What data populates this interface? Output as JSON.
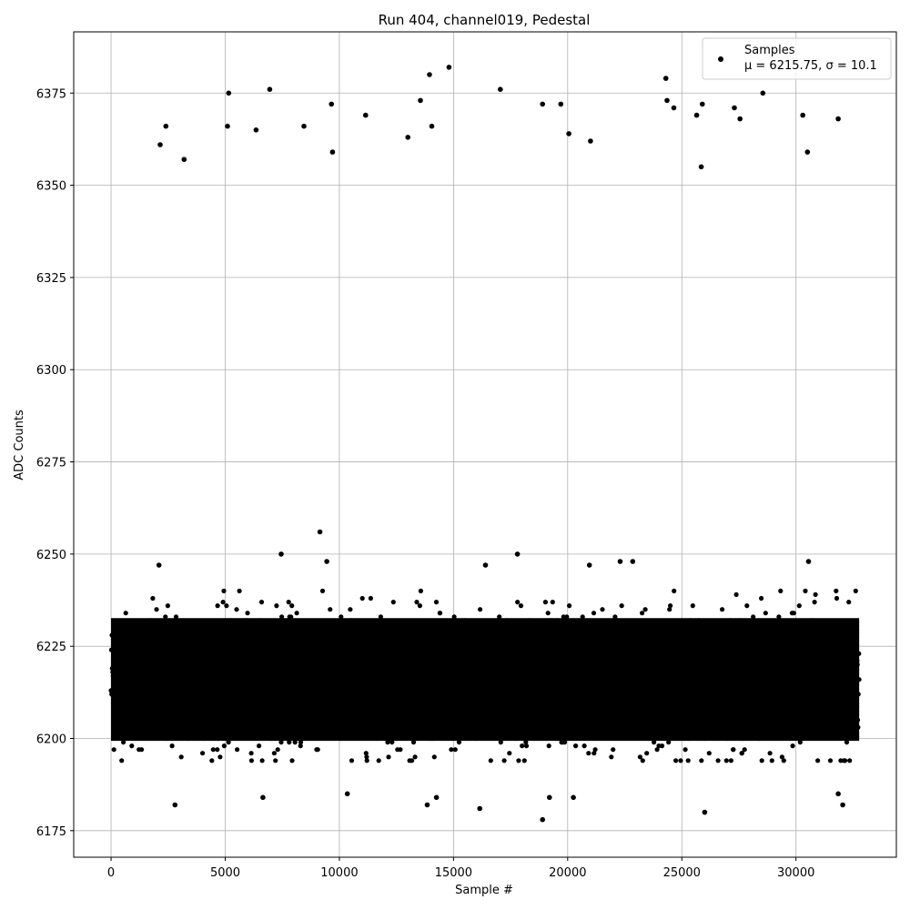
{
  "chart_data": {
    "type": "scatter",
    "title": "Run 404, channel019, Pedestal",
    "xlabel": "Sample #",
    "ylabel": "ADC Counts",
    "xlim": [
      -1636,
      34396
    ],
    "ylim": [
      6167.8,
      6391.6
    ],
    "xticks": [
      0,
      5000,
      10000,
      15000,
      20000,
      25000,
      30000
    ],
    "xtick_labels": [
      "0",
      "5000",
      "10000",
      "15000",
      "20000",
      "25000",
      "30000"
    ],
    "yticks": [
      6175,
      6200,
      6225,
      6250,
      6275,
      6300,
      6325,
      6350,
      6375
    ],
    "ytick_labels": [
      "6175",
      "6200",
      "6225",
      "6250",
      "6275",
      "6300",
      "6325",
      "6350",
      "6375"
    ],
    "grid": true,
    "legend_position": "top-right",
    "series": [
      {
        "name": "Samples",
        "legend_detail": "μ = 6215.75, σ = 10.1",
        "color": "#000000",
        "marker": "circle",
        "band": {
          "x_range": [
            0,
            32767
          ],
          "mean": 6215.75,
          "sigma": 10.1,
          "dense_range": [
            6200,
            6232
          ]
        },
        "outliers": [
          [
            2150,
            6361
          ],
          [
            2400,
            6366
          ],
          [
            3200,
            6357
          ],
          [
            5100,
            6366
          ],
          [
            5150,
            6375
          ],
          [
            6350,
            6365
          ],
          [
            6950,
            6376
          ],
          [
            8450,
            6366
          ],
          [
            9650,
            6372
          ],
          [
            9700,
            6359
          ],
          [
            11150,
            6369
          ],
          [
            13000,
            6363
          ],
          [
            13550,
            6373
          ],
          [
            13950,
            6380
          ],
          [
            14050,
            6366
          ],
          [
            14800,
            6382
          ],
          [
            17050,
            6376
          ],
          [
            18900,
            6372
          ],
          [
            19700,
            6372
          ],
          [
            20050,
            6364
          ],
          [
            21000,
            6362
          ],
          [
            24300,
            6379
          ],
          [
            24350,
            6373
          ],
          [
            24650,
            6371
          ],
          [
            25650,
            6369
          ],
          [
            25850,
            6355
          ],
          [
            25900,
            6372
          ],
          [
            27300,
            6371
          ],
          [
            27550,
            6368
          ],
          [
            28550,
            6375
          ],
          [
            30300,
            6369
          ],
          [
            30500,
            6359
          ],
          [
            31850,
            6368
          ],
          [
            9150,
            6256
          ],
          [
            7450,
            6250
          ],
          [
            17800,
            6250
          ],
          [
            9450,
            6248
          ],
          [
            22300,
            6248
          ],
          [
            22850,
            6248
          ],
          [
            30550,
            6248
          ],
          [
            2100,
            6247
          ],
          [
            16400,
            6247
          ],
          [
            20950,
            6247
          ],
          [
            2800,
            6182
          ],
          [
            6650,
            6184
          ],
          [
            13850,
            6182
          ],
          [
            14250,
            6184
          ],
          [
            16150,
            6181
          ],
          [
            18900,
            6178
          ],
          [
            20250,
            6184
          ],
          [
            26000,
            6180
          ],
          [
            32050,
            6182
          ],
          [
            10350,
            6185
          ],
          [
            31850,
            6185
          ],
          [
            19200,
            6184
          ]
        ]
      }
    ]
  }
}
